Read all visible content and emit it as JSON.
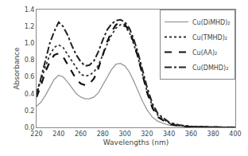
{
  "chart_data": {
    "type": "line",
    "xlabel": "Wavelengths (nm)",
    "ylabel": "Absorbance",
    "xlim": [
      220,
      400
    ],
    "ylim": [
      0.0,
      1.4
    ],
    "xticks": [
      220,
      240,
      260,
      280,
      300,
      320,
      340,
      360,
      380,
      400
    ],
    "yticks": [
      {
        "value": 0.0,
        "label": "0.0"
      },
      0.2,
      0.4,
      0.6,
      0.8,
      {
        "value": 1.0,
        "label": "1.0"
      },
      1.2,
      1.4
    ],
    "grid": false,
    "legend": "upper right",
    "x": [
      220,
      224,
      228,
      232,
      236,
      240,
      244,
      248,
      252,
      256,
      260,
      264,
      268,
      272,
      276,
      280,
      284,
      288,
      292,
      296,
      300,
      304,
      308,
      312,
      316,
      320,
      325,
      330,
      340,
      350,
      360,
      370,
      380,
      390,
      400
    ],
    "series": [
      {
        "name": "Cu(DiMHD)₂",
        "color": "#999999",
        "line_style": "solid",
        "values": [
          0.25,
          0.3,
          0.38,
          0.48,
          0.57,
          0.62,
          0.6,
          0.54,
          0.47,
          0.4,
          0.36,
          0.34,
          0.34,
          0.36,
          0.41,
          0.5,
          0.6,
          0.69,
          0.75,
          0.76,
          0.73,
          0.66,
          0.55,
          0.43,
          0.31,
          0.21,
          0.12,
          0.07,
          0.025,
          0.01,
          0.005,
          0.003,
          0.002,
          0.001,
          0.0
        ]
      },
      {
        "name": "Cu(TMHD)₂",
        "color": "#333333",
        "line_style": "dotted",
        "values": [
          0.43,
          0.56,
          0.72,
          0.86,
          0.95,
          0.98,
          0.95,
          0.87,
          0.78,
          0.7,
          0.63,
          0.61,
          0.62,
          0.66,
          0.74,
          0.86,
          0.99,
          1.1,
          1.18,
          1.22,
          1.2,
          1.13,
          0.99,
          0.82,
          0.62,
          0.43,
          0.25,
          0.14,
          0.05,
          0.02,
          0.01,
          0.005,
          0.003,
          0.001,
          0.0
        ]
      },
      {
        "name": "Cu(AA)₂",
        "color": "#111111",
        "line_style": "dashed",
        "values": [
          0.36,
          0.5,
          0.66,
          0.78,
          0.86,
          0.88,
          0.84,
          0.75,
          0.65,
          0.57,
          0.52,
          0.5,
          0.52,
          0.58,
          0.7,
          0.85,
          1.02,
          1.14,
          1.22,
          1.25,
          1.22,
          1.15,
          1.01,
          0.83,
          0.62,
          0.42,
          0.23,
          0.12,
          0.04,
          0.015,
          0.007,
          0.003,
          0.002,
          0.001,
          0.0
        ]
      },
      {
        "name": "Cu(DMHD)₂",
        "color": "#222222",
        "line_style": "dashdot",
        "values": [
          0.38,
          0.58,
          0.8,
          1.0,
          1.14,
          1.25,
          1.2,
          1.1,
          0.97,
          0.86,
          0.78,
          0.73,
          0.74,
          0.79,
          0.9,
          1.04,
          1.16,
          1.23,
          1.27,
          1.28,
          1.25,
          1.18,
          1.05,
          0.88,
          0.68,
          0.48,
          0.28,
          0.16,
          0.06,
          0.025,
          0.012,
          0.006,
          0.003,
          0.001,
          0.0
        ]
      }
    ]
  }
}
